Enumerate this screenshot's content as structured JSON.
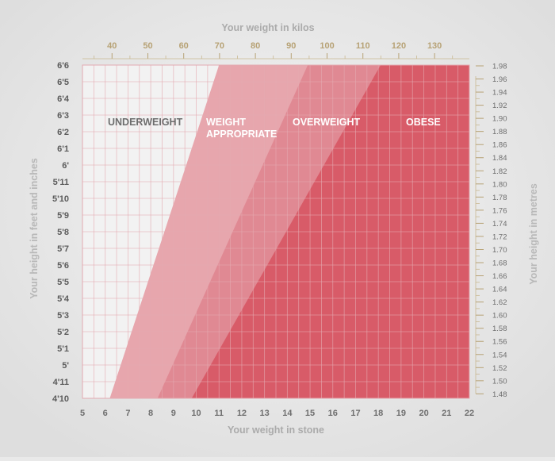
{
  "chart_data": {
    "type": "area",
    "title": "",
    "xlabel": "Your weight in stone",
    "ylabel": "Your height in feet and inches",
    "top_axis_label": "Your weight in kilos",
    "right_axis_label": "Your height in metres",
    "x_range": [
      5,
      22
    ],
    "x_ticks": [
      "5",
      "6",
      "7",
      "8",
      "9",
      "10",
      "11",
      "12",
      "13",
      "14",
      "15",
      "16",
      "17",
      "18",
      "19",
      "20",
      "21",
      "22"
    ],
    "top_ticks": [
      "40",
      "50",
      "60",
      "70",
      "80",
      "90",
      "100",
      "110",
      "120",
      "130"
    ],
    "left_ticks": [
      "4'10",
      "4'11",
      "5'",
      "5'1",
      "5'2",
      "5'3",
      "5'4",
      "5'5",
      "5'6",
      "5'7",
      "5'8",
      "5'9",
      "5'10",
      "5'11",
      "6'",
      "6'1",
      "6'2",
      "6'3",
      "6'4",
      "6'5",
      "6'6"
    ],
    "right_ticks": [
      "1.48",
      "1.50",
      "1.52",
      "1.54",
      "1.56",
      "1.58",
      "1.60",
      "1.62",
      "1.64",
      "1.66",
      "1.68",
      "1.70",
      "1.72",
      "1.74",
      "1.76",
      "1.78",
      "1.80",
      "1.82",
      "1.84",
      "1.86",
      "1.88",
      "1.90",
      "1.92",
      "1.94",
      "1.96",
      "1.98"
    ],
    "regions": [
      {
        "name": "UNDERWEIGHT",
        "color": "#f2f2f2",
        "text_color": "#6d6d6d",
        "boundary": []
      },
      {
        "name": "WEIGHT APPROPRIATE",
        "color": "#e7a6ad",
        "text_color": "#ffffff",
        "boundary": [
          [
            6.2,
            "4'10"
          ],
          [
            11.0,
            "6'6"
          ]
        ]
      },
      {
        "name": "OVERWEIGHT",
        "color": "#e08993",
        "text_color": "#ffffff",
        "boundary": [
          [
            8.3,
            "4'10"
          ],
          [
            14.9,
            "6'6"
          ]
        ]
      },
      {
        "name": "OBESE",
        "color": "#d85b68",
        "text_color": "#ffffff",
        "boundary": [
          [
            9.8,
            "4'10"
          ],
          [
            18.1,
            "6'6"
          ]
        ]
      }
    ]
  }
}
